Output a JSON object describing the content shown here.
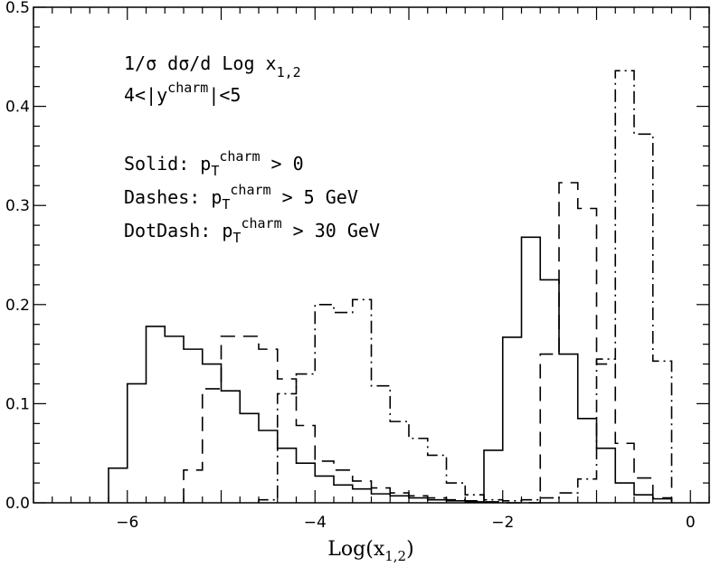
{
  "chart_data": {
    "type": "histogram-step",
    "title": "",
    "xlabel": "Log(x",
    "xlabel_sub": "1,2",
    "xlabel_close": ")",
    "ylabel": "",
    "xlim": [
      -7,
      0.2
    ],
    "ylim": [
      0,
      0.5
    ],
    "x_ticks": [
      -6,
      -4,
      -2,
      0
    ],
    "x_tick_labels": [
      "−6",
      "−4",
      "−2",
      "0"
    ],
    "y_ticks": [
      0.0,
      0.1,
      0.2,
      0.3,
      0.4,
      0.5
    ],
    "y_tick_labels": [
      "0.0",
      "0.1",
      "0.2",
      "0.3",
      "0.4",
      "0.5"
    ],
    "grid": false,
    "annotations": {
      "line1": "1/σ dσ/d Log x",
      "line1_sub": "1,2",
      "line2_pre": "4<|y",
      "line2_sup": "charm",
      "line2_post": "|<5",
      "solid_pre": "Solid: p",
      "solid_sub": "T",
      "solid_sup": "charm",
      "solid_post": " > 0",
      "dashes_pre": "Dashes: p",
      "dashes_sub": "T",
      "dashes_sup": "charm",
      "dashes_post": " > 5 GeV",
      "dotdash_pre": "DotDash: p",
      "dotdash_sub": "T",
      "dotdash_sup": "charm",
      "dotdash_post": " > 30 GeV"
    },
    "series": [
      {
        "style": "solid",
        "edges": [
          -6.2,
          -6.0,
          -5.8,
          -5.6,
          -5.4,
          -5.2,
          -5.0,
          -4.8,
          -4.6,
          -4.4,
          -4.2,
          -4.0,
          -3.8,
          -3.6,
          -3.4,
          -3.2,
          -3.0,
          -2.8,
          -2.6,
          -2.4,
          -2.2,
          -2.0,
          -1.8,
          -1.6,
          -1.4,
          -1.2,
          -1.0,
          -0.8,
          -0.6,
          -0.4,
          -0.2
        ],
        "values": [
          0.035,
          0.12,
          0.178,
          0.168,
          0.155,
          0.14,
          0.113,
          0.09,
          0.073,
          0.055,
          0.04,
          0.027,
          0.018,
          0.014,
          0.009,
          0.007,
          0.005,
          0.003,
          0.002,
          0.001,
          0.053,
          0.167,
          0.268,
          0.225,
          0.15,
          0.085,
          0.055,
          0.02,
          0.008,
          0.004
        ]
      },
      {
        "style": "dashed",
        "edges": [
          -5.4,
          -5.2,
          -5.0,
          -4.8,
          -4.6,
          -4.4,
          -4.2,
          -4.0,
          -3.8,
          -3.6,
          -3.4,
          -3.2,
          -3.0,
          -2.8,
          -2.6,
          -2.4,
          -2.2,
          -2.0,
          -1.8,
          -1.6,
          -1.4,
          -1.2,
          -1.0,
          -0.8,
          -0.6,
          -0.4,
          -0.2
        ],
        "values": [
          0.033,
          0.115,
          0.168,
          0.168,
          0.155,
          0.125,
          0.078,
          0.042,
          0.033,
          0.022,
          0.015,
          0.01,
          0.007,
          0.005,
          0.003,
          0.002,
          0.001,
          0.0,
          0.0,
          0.15,
          0.323,
          0.297,
          0.14,
          0.06,
          0.025,
          0.005
        ]
      },
      {
        "style": "dashdot",
        "edges": [
          -4.6,
          -4.4,
          -4.2,
          -4.0,
          -3.8,
          -3.6,
          -3.4,
          -3.2,
          -3.0,
          -2.8,
          -2.6,
          -2.4,
          -2.2,
          -2.0,
          -1.8,
          -1.6,
          -1.4,
          -1.2,
          -1.0,
          -0.8,
          -0.6,
          -0.4,
          -0.2
        ],
        "values": [
          0.003,
          0.11,
          0.13,
          0.2,
          0.192,
          0.205,
          0.118,
          0.082,
          0.065,
          0.048,
          0.02,
          0.008,
          0.003,
          0.002,
          0.003,
          0.005,
          0.01,
          0.024,
          0.145,
          0.436,
          0.372,
          0.143,
          0.015
        ]
      }
    ]
  }
}
